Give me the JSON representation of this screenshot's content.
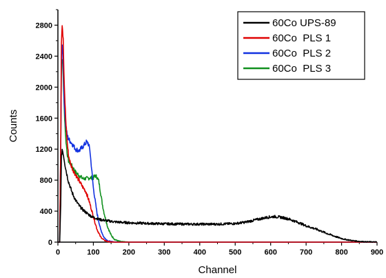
{
  "chart_data": {
    "type": "line",
    "title": "",
    "xlabel": "Channel",
    "ylabel": "Counts",
    "xlim": [
      0,
      900
    ],
    "ylim": [
      0,
      3000
    ],
    "xticks": [
      0,
      100,
      200,
      300,
      400,
      500,
      600,
      700,
      800,
      900
    ],
    "yticks": [
      0,
      400,
      800,
      1200,
      1600,
      2000,
      2400,
      2800
    ],
    "grid": false,
    "legend_position": "top-right",
    "series": [
      {
        "name": "60Co UPS-89",
        "color": "#000000",
        "x": [
          0,
          5,
          8,
          10,
          12,
          15,
          20,
          25,
          30,
          40,
          50,
          60,
          70,
          80,
          90,
          100,
          120,
          140,
          160,
          180,
          200,
          250,
          300,
          350,
          400,
          450,
          500,
          530,
          560,
          590,
          610,
          630,
          650,
          680,
          700,
          730,
          760,
          790,
          810,
          830,
          850,
          870,
          900
        ],
        "y": [
          0,
          0,
          500,
          1100,
          1200,
          1150,
          1000,
          880,
          780,
          640,
          540,
          470,
          420,
          380,
          345,
          320,
          290,
          275,
          262,
          255,
          250,
          242,
          236,
          233,
          232,
          232,
          240,
          258,
          290,
          320,
          330,
          320,
          300,
          250,
          210,
          165,
          110,
          60,
          35,
          20,
          10,
          5,
          2
        ]
      },
      {
        "name": "60Co  PLS 1",
        "color": "#e00000",
        "x": [
          0,
          5,
          8,
          10,
          12,
          15,
          18,
          22,
          26,
          30,
          35,
          40,
          45,
          50,
          55,
          60,
          65,
          70,
          75,
          80,
          90,
          100,
          110,
          120,
          130,
          140,
          150,
          160,
          180,
          200,
          300,
          900
        ],
        "y": [
          0,
          0,
          1300,
          2600,
          2830,
          2600,
          2000,
          1600,
          1300,
          1120,
          1020,
          960,
          910,
          870,
          830,
          790,
          750,
          710,
          680,
          640,
          500,
          330,
          170,
          70,
          25,
          8,
          2,
          0,
          0,
          0,
          0,
          0
        ]
      },
      {
        "name": "60Co  PLS 2",
        "color": "#1030e0",
        "x": [
          0,
          5,
          8,
          10,
          12,
          15,
          18,
          22,
          26,
          30,
          35,
          40,
          50,
          60,
          70,
          80,
          85,
          90,
          95,
          100,
          110,
          120,
          130,
          140,
          150,
          160,
          180,
          200,
          300,
          900
        ],
        "y": [
          0,
          0,
          1200,
          2400,
          2570,
          2300,
          1800,
          1500,
          1380,
          1330,
          1300,
          1270,
          1200,
          1180,
          1230,
          1290,
          1280,
          1200,
          950,
          700,
          380,
          170,
          60,
          20,
          6,
          2,
          0,
          0,
          0,
          0
        ]
      },
      {
        "name": "60Co  PLS 3",
        "color": "#10901e",
        "x": [
          0,
          5,
          8,
          10,
          12,
          15,
          18,
          22,
          26,
          30,
          35,
          40,
          50,
          60,
          70,
          80,
          90,
          100,
          105,
          110,
          115,
          120,
          125,
          130,
          140,
          150,
          160,
          170,
          180,
          200,
          250,
          900
        ],
        "y": [
          0,
          0,
          1200,
          2300,
          2390,
          2150,
          1700,
          1350,
          1150,
          1050,
          1010,
          980,
          900,
          860,
          820,
          820,
          830,
          830,
          860,
          840,
          790,
          650,
          500,
          380,
          200,
          90,
          35,
          15,
          5,
          0,
          0,
          0
        ]
      }
    ]
  }
}
